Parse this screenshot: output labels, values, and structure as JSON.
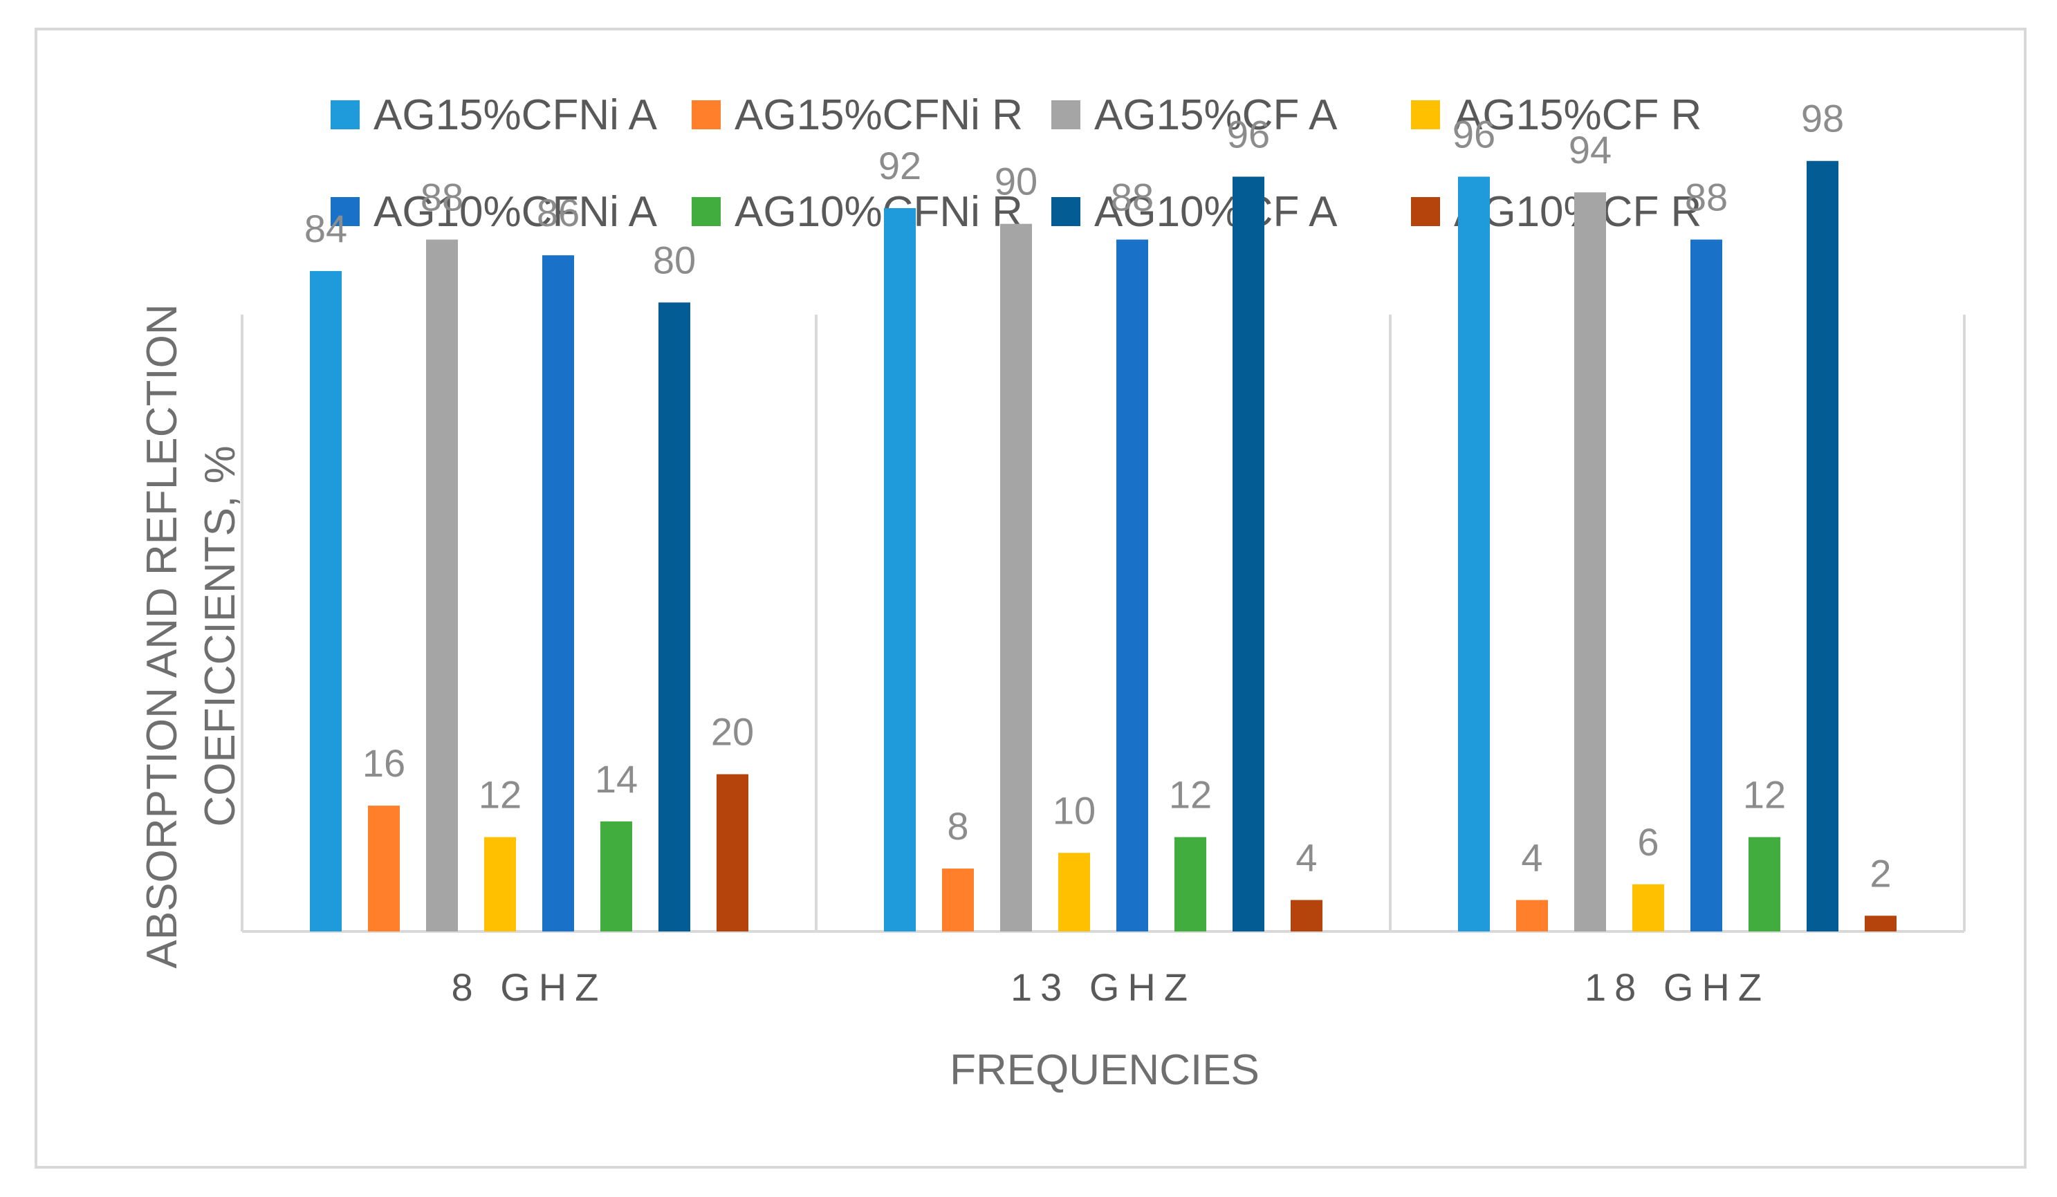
{
  "chart_data": {
    "type": "bar",
    "title": "",
    "xlabel": "FREQUENCIES",
    "ylabel": "ABSORPTION AND REFLECTION COEFICCIENTS, %",
    "ylim": [
      0,
      100
    ],
    "grid": false,
    "legend_position": "top",
    "categories": [
      "8  GHZ",
      "13  GHZ",
      "18  GHZ"
    ],
    "series": [
      {
        "name": "AG15%CFNi A",
        "color": "#1f9bdc",
        "values": [
          84,
          92,
          96
        ]
      },
      {
        "name": " AG15%CFNi R",
        "color": "#ff7f2a",
        "values": [
          16,
          8,
          4
        ]
      },
      {
        "name": "AG15%CF A",
        "color": "#a5a5a5",
        "values": [
          88,
          90,
          94
        ]
      },
      {
        "name": "AG15%CF R",
        "color": "#ffc000",
        "values": [
          12,
          10,
          6
        ]
      },
      {
        "name": "AG10%CFNi A",
        "color": "#1a72c8",
        "values": [
          86,
          88,
          88
        ]
      },
      {
        "name": "AG10%CFNi R",
        "color": "#41ad3f",
        "values": [
          14,
          12,
          12
        ]
      },
      {
        "name": "AG10%CF A",
        "color": "#035c93",
        "values": [
          80,
          96,
          98
        ]
      },
      {
        "name": "AG10%CF R",
        "color": "#b5440c",
        "values": [
          20,
          4,
          2
        ]
      }
    ]
  }
}
